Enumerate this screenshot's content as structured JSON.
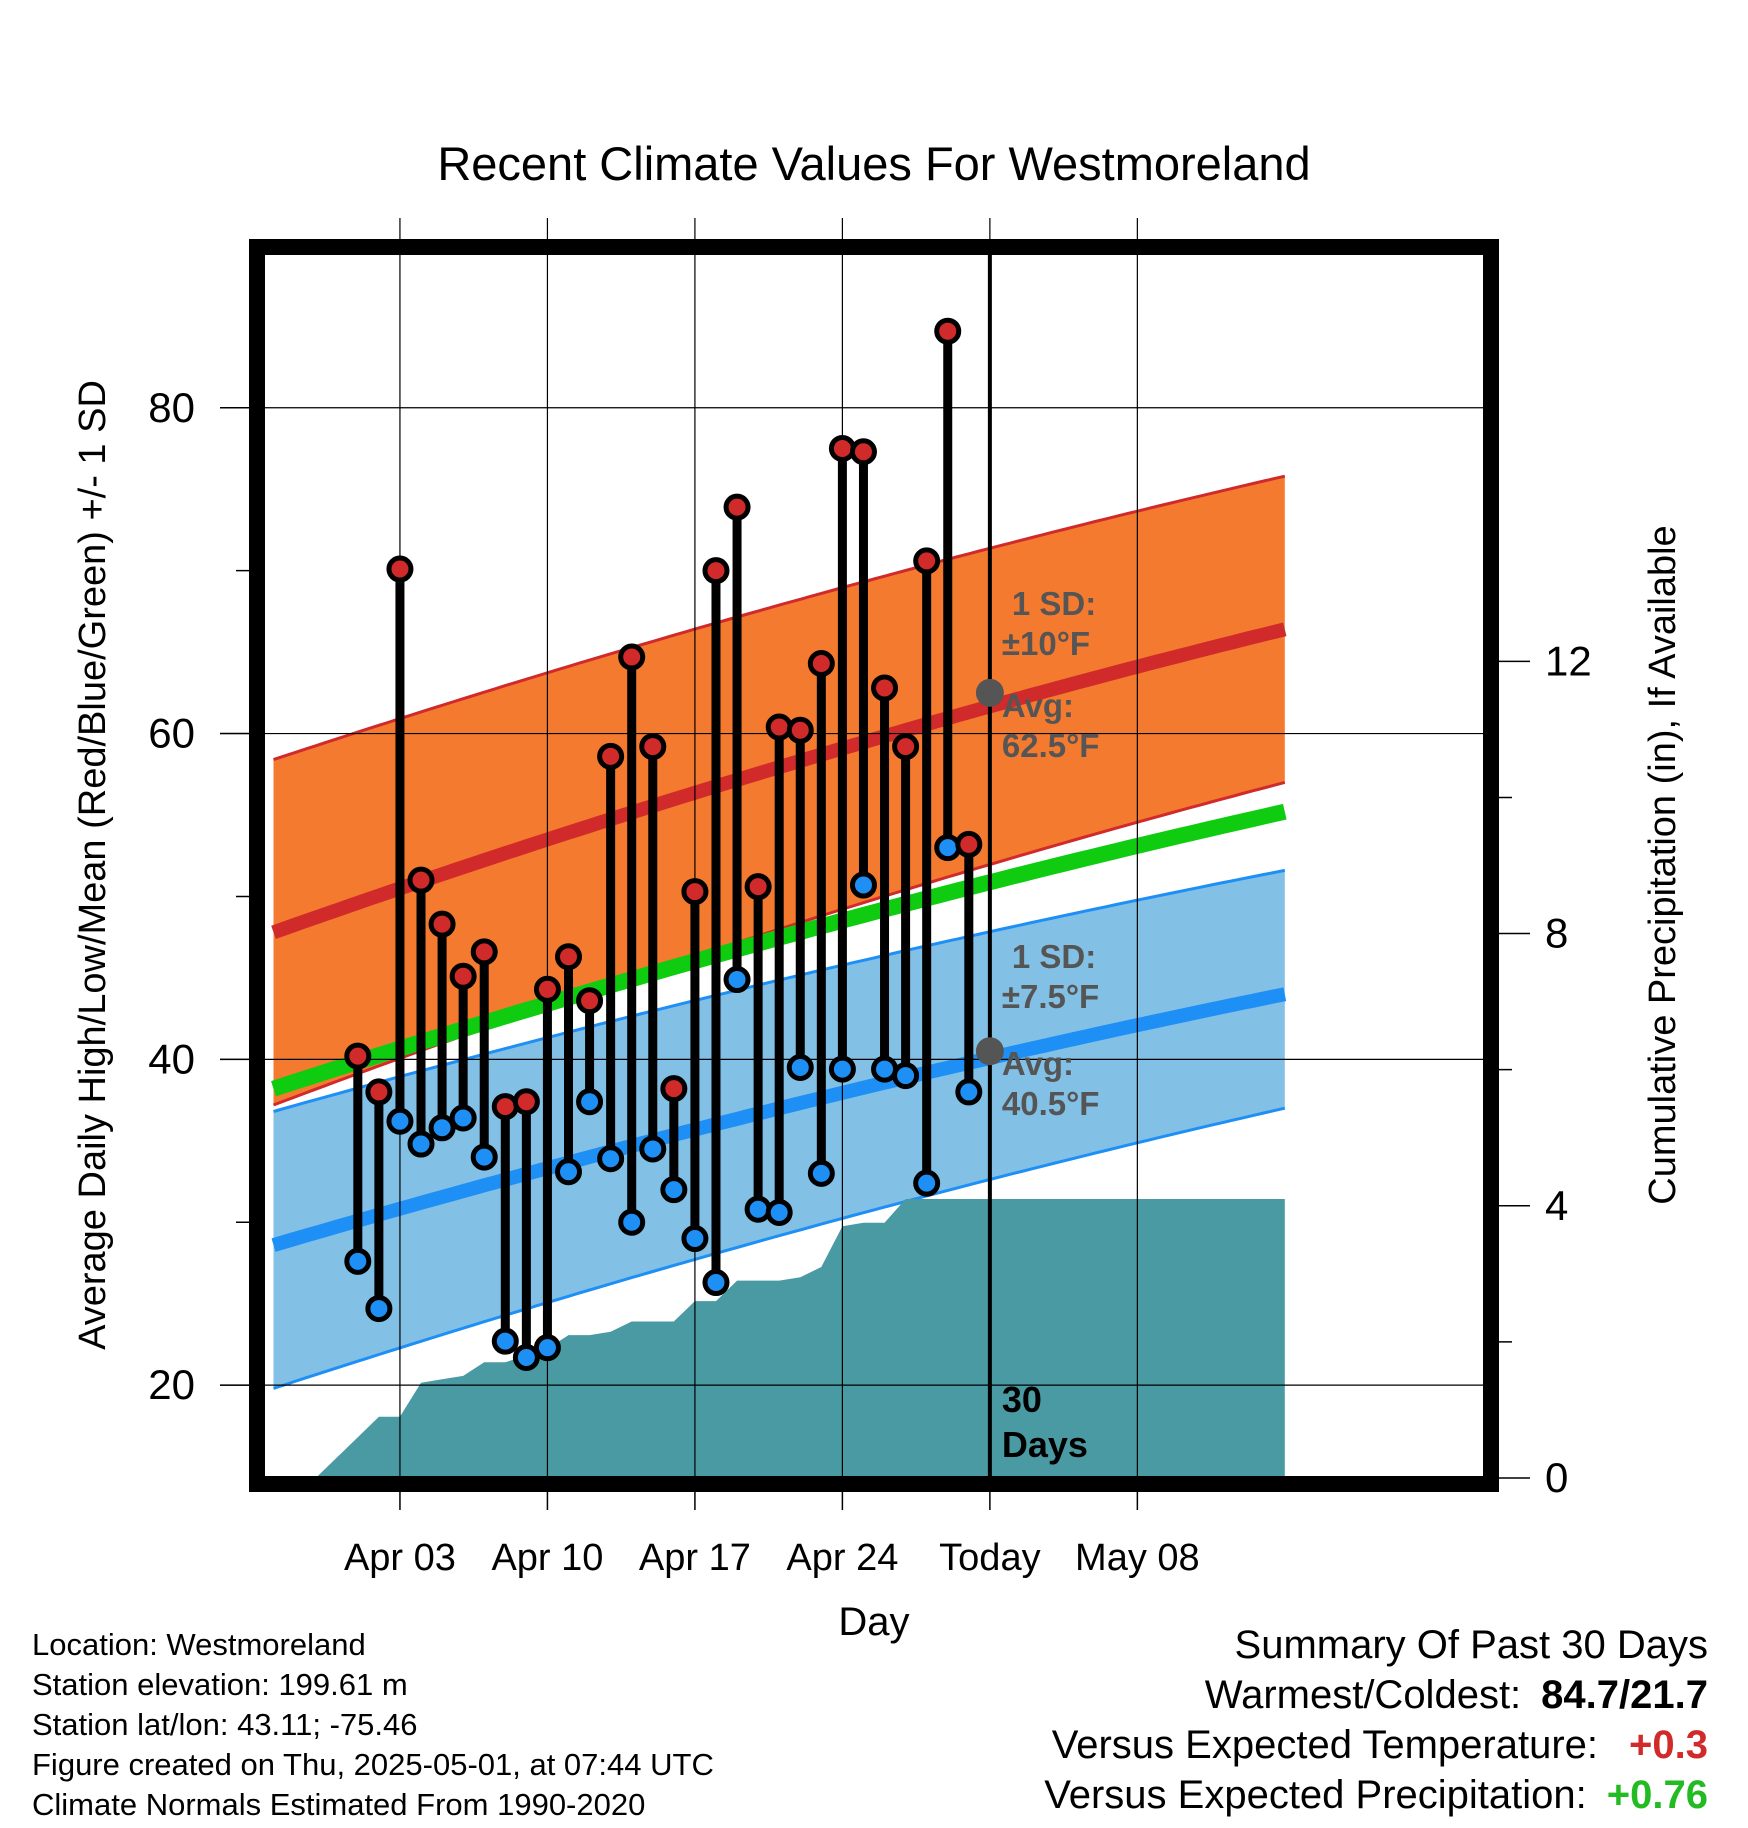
{
  "chart_data": {
    "type": "line",
    "title": "Recent Climate Values For Westmoreland",
    "xlabel": "Day",
    "ylabel": "Average Daily High/Low/Mean (Red/Blue/Green) +/- 1 SD",
    "y2label": "Cumulative Precipitation (in), If Available",
    "ylim": [
      14.3,
      89.5
    ],
    "y2lim": [
      0,
      18.0
    ],
    "xlim": [
      -3.5,
      54.5
    ],
    "yticks": [
      20,
      40,
      60,
      80
    ],
    "y2ticks": [
      0,
      4,
      8,
      12
    ],
    "xticks": [
      {
        "x": 3,
        "label": "Apr 03"
      },
      {
        "x": 10,
        "label": "Apr 10"
      },
      {
        "x": 17,
        "label": "Apr 17"
      },
      {
        "x": 24,
        "label": "Apr 24"
      },
      {
        "x": 31,
        "label": "Today"
      },
      {
        "x": 38,
        "label": "May 08"
      }
    ],
    "grid": true,
    "today_x": 31,
    "today_label": "30\nDays",
    "days": [
      1,
      2,
      3,
      4,
      5,
      6,
      7,
      8,
      9,
      10,
      11,
      12,
      13,
      14,
      15,
      16,
      17,
      18,
      19,
      20,
      21,
      22,
      23,
      24,
      25,
      26,
      27,
      28,
      29,
      30
    ],
    "observed_high": [
      40.2,
      38.0,
      70.1,
      51.0,
      48.3,
      45.1,
      46.6,
      37.1,
      37.4,
      44.3,
      46.3,
      43.6,
      58.6,
      64.7,
      59.2,
      38.2,
      50.3,
      70.0,
      73.9,
      50.6,
      60.4,
      60.2,
      64.3,
      77.5,
      77.3,
      62.8,
      59.2,
      70.6,
      84.7,
      53.2
    ],
    "observed_low": [
      27.6,
      24.7,
      36.2,
      34.8,
      35.8,
      36.4,
      34.0,
      22.7,
      21.7,
      22.3,
      33.1,
      37.4,
      33.9,
      30.0,
      34.5,
      32.0,
      29.0,
      26.3,
      44.9,
      30.8,
      30.6,
      39.5,
      33.0,
      39.4,
      50.7,
      39.4,
      39.0,
      32.4,
      53.0,
      38.0
    ],
    "normal_high": {
      "x": [
        -3,
        45
      ],
      "mid": [
        47.8,
        66.4
      ],
      "sd_lo": [
        37.2,
        57.0
      ],
      "sd_hi": [
        58.4,
        75.8
      ]
    },
    "normal_low": {
      "x": [
        -3,
        45
      ],
      "mid": [
        28.6,
        44.0
      ],
      "sd_lo": [
        19.8,
        37.0
      ],
      "sd_hi": [
        36.8,
        51.6
      ]
    },
    "normal_mean": {
      "x": [
        -3,
        45
      ],
      "mid": [
        38.2,
        55.2
      ]
    },
    "cumulative_precip": {
      "x": [
        -1,
        1,
        2,
        3,
        4,
        5,
        6,
        7,
        8,
        9,
        10,
        11,
        12,
        13,
        14,
        15,
        16,
        17,
        18,
        19,
        20,
        21,
        22,
        23,
        24,
        25,
        26,
        27,
        28,
        29,
        30,
        45
      ],
      "values": [
        0,
        0.6,
        0.9,
        0.9,
        1.4,
        1.45,
        1.5,
        1.7,
        1.7,
        1.8,
        1.9,
        2.1,
        2.1,
        2.15,
        2.3,
        2.3,
        2.3,
        2.6,
        2.6,
        2.9,
        2.9,
        2.9,
        2.95,
        3.1,
        3.7,
        3.75,
        3.75,
        4.1,
        4.1,
        4.1,
        4.1,
        4.1
      ]
    },
    "annotations": {
      "high": {
        "sd": "1 SD:",
        "sd_val": "±10°F",
        "avg": "Avg:",
        "avg_val": "62.5°F",
        "value": 62.5
      },
      "low": {
        "sd": "1 SD:",
        "sd_val": "±7.5°F",
        "avg": "Avg:",
        "avg_val": "40.5°F",
        "value": 40.5
      }
    }
  },
  "colors": {
    "high_band": "#f47a30",
    "high_line": "#d12a2a",
    "low_band": "#82c0e6",
    "low_line": "#1e8ff5",
    "mean_line": "#10cc10",
    "precip": "#4a9aa3",
    "high_dot": "#d12a2a",
    "low_dot": "#1e8ff5",
    "annotation": "#555555",
    "pos_temp": "#d12a2a",
    "pos_precip": "#22bb22"
  },
  "info": {
    "location": "Location: Westmoreland",
    "elevation": "Station elevation: 199.61 m",
    "latlon": "Station lat/lon: 43.11; -75.46",
    "created": "Figure created on Thu, 2025-05-01, at 07:44 UTC",
    "normals": "Climate Normals Estimated From 1990-2020"
  },
  "summary": {
    "title": "Summary Of Past 30 Days",
    "warm_cold_label": "Warmest/Coldest:",
    "warm_cold_value": "84.7/21.7",
    "temp_label": "Versus Expected Temperature:",
    "temp_value": "+0.3",
    "precip_label": "Versus Expected Precipitation:",
    "precip_value": "+0.76"
  }
}
